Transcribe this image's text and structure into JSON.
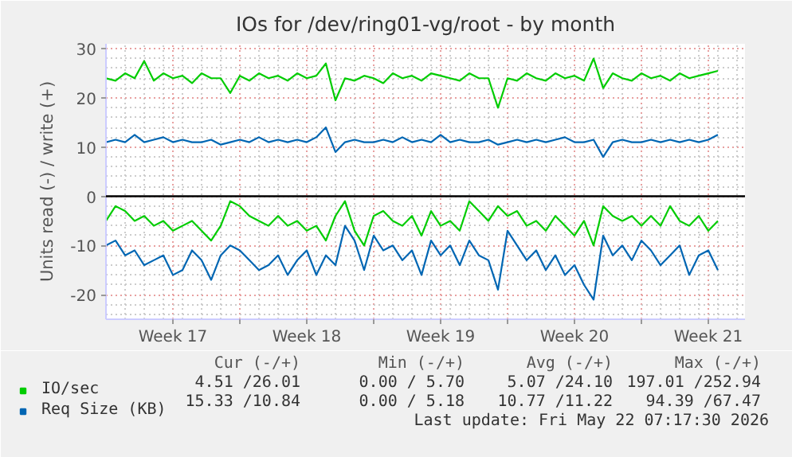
{
  "chart_data": {
    "type": "line",
    "title": "IOs for /dev/ring01-vg/root - by month",
    "ylabel": "Units read (-) / write (+)",
    "x": [
      "2026-04-20T00:00",
      "2026-04-20T12:00",
      "2026-04-21T00:00",
      "2026-04-21T12:00",
      "2026-04-22T00:00",
      "2026-04-22T12:00",
      "2026-04-23T00:00",
      "2026-04-23T12:00",
      "2026-04-24T00:00",
      "2026-04-24T12:00",
      "2026-04-25T00:00",
      "2026-04-25T12:00",
      "2026-04-26T00:00",
      "2026-04-26T12:00",
      "2026-04-27T00:00",
      "2026-04-27T12:00",
      "2026-04-28T00:00",
      "2026-04-28T12:00",
      "2026-04-29T00:00",
      "2026-04-29T12:00",
      "2026-04-30T00:00",
      "2026-04-30T12:00",
      "2026-05-01T00:00",
      "2026-05-01T12:00",
      "2026-05-02T00:00",
      "2026-05-02T12:00",
      "2026-05-03T00:00",
      "2026-05-03T12:00",
      "2026-05-04T00:00",
      "2026-05-04T12:00",
      "2026-05-05T00:00",
      "2026-05-05T12:00",
      "2026-05-06T00:00",
      "2026-05-06T12:00",
      "2026-05-07T00:00",
      "2026-05-07T12:00",
      "2026-05-08T00:00",
      "2026-05-08T12:00",
      "2026-05-09T00:00",
      "2026-05-09T12:00",
      "2026-05-10T00:00",
      "2026-05-10T12:00",
      "2026-05-11T00:00",
      "2026-05-11T12:00",
      "2026-05-12T00:00",
      "2026-05-12T12:00",
      "2026-05-13T00:00",
      "2026-05-13T12:00",
      "2026-05-14T00:00",
      "2026-05-14T12:00",
      "2026-05-15T00:00",
      "2026-05-15T12:00",
      "2026-05-16T00:00",
      "2026-05-16T12:00",
      "2026-05-17T00:00",
      "2026-05-17T12:00",
      "2026-05-18T00:00",
      "2026-05-18T12:00",
      "2026-05-19T00:00",
      "2026-05-19T12:00",
      "2026-05-20T00:00",
      "2026-05-20T12:00",
      "2026-05-21T00:00",
      "2026-05-21T12:00",
      "2026-05-22T00:00"
    ],
    "xlim": [
      "2026-04-20T00:00",
      "2026-05-23T10:00"
    ],
    "xticks": [
      {
        "value": "2026-04-23T12:00",
        "label": "Week 17"
      },
      {
        "value": "2026-04-27T00:00",
        "label": null
      },
      {
        "value": "2026-04-30T12:00",
        "label": "Week 18"
      },
      {
        "value": "2026-05-04T00:00",
        "label": null
      },
      {
        "value": "2026-05-07T12:00",
        "label": "Week 19"
      },
      {
        "value": "2026-05-11T00:00",
        "label": null
      },
      {
        "value": "2026-05-14T12:00",
        "label": "Week 20"
      },
      {
        "value": "2026-05-18T00:00",
        "label": null
      },
      {
        "value": "2026-05-21T12:00",
        "label": "Week 21"
      }
    ],
    "ylim": [
      -25,
      31
    ],
    "yticks": [
      -20,
      -10,
      0,
      10,
      20,
      30
    ],
    "grid": true,
    "legend": "bottom",
    "ref_lines": [
      {
        "axis": "y",
        "value": 0,
        "color": "#000000"
      }
    ],
    "series": [
      {
        "name": "IO/sec",
        "color": "#00cc00",
        "values": [
          24,
          23.5,
          25,
          24,
          27.5,
          23.5,
          25,
          24,
          24.5,
          23,
          25,
          24,
          24,
          21,
          24.5,
          23.5,
          25,
          24,
          24.5,
          23.5,
          25,
          24,
          24.5,
          27,
          19.5,
          24,
          23.5,
          24.5,
          24,
          23,
          25,
          24,
          24.5,
          23.5,
          25,
          24.5,
          24,
          23.5,
          25,
          24,
          24,
          18,
          24,
          23.5,
          25,
          24,
          23.5,
          25,
          24,
          24.5,
          23.5,
          28,
          22,
          25,
          24,
          23.5,
          25,
          24,
          24.5,
          23.5,
          25,
          24,
          24.5,
          25,
          25.5
        ]
      },
      {
        "name": "Req Size (KB)",
        "color": "#0066b3",
        "values": [
          11,
          11.5,
          11,
          12.5,
          11,
          11.5,
          12,
          11,
          11.5,
          11,
          11,
          11.5,
          10.5,
          11,
          11.5,
          11,
          12,
          11,
          11.5,
          11,
          11.5,
          11,
          12,
          14,
          9,
          11,
          11.5,
          11,
          11,
          11.5,
          11,
          12,
          11,
          11.5,
          11,
          12.5,
          11,
          11.5,
          11,
          11,
          11.5,
          10.5,
          11,
          11.5,
          11,
          11.5,
          11,
          11.5,
          12,
          11,
          11,
          11.5,
          8,
          11,
          11.5,
          11,
          11,
          11.5,
          11,
          11.5,
          11,
          11.5,
          11,
          11.5,
          12.5
        ]
      },
      {
        "color": "#00cc00",
        "values": [
          -5,
          -2,
          -3,
          -5,
          -4,
          -6,
          -5,
          -7,
          -6,
          -5,
          -7,
          -9,
          -6,
          -1,
          -2,
          -4,
          -5,
          -6,
          -4,
          -6,
          -5,
          -7,
          -6,
          -9,
          -4,
          -1,
          -7,
          -10,
          -4,
          -3,
          -5,
          -6,
          -4,
          -8,
          -3,
          -6,
          -5,
          -7,
          -1,
          -3,
          -5,
          -2,
          -4,
          -3,
          -6,
          -5,
          -7,
          -4,
          -6,
          -8,
          -5,
          -10,
          -2,
          -4,
          -5,
          -4,
          -6,
          -4,
          -6,
          -2,
          -5,
          -6,
          -4,
          -7,
          -5
        ]
      },
      {
        "color": "#0066b3",
        "values": [
          -10,
          -9,
          -12,
          -11,
          -14,
          -13,
          -12,
          -16,
          -15,
          -11,
          -13,
          -17,
          -12,
          -10,
          -11,
          -13,
          -15,
          -14,
          -12,
          -16,
          -13,
          -11,
          -16,
          -12,
          -14,
          -6,
          -9,
          -15,
          -8,
          -11,
          -10,
          -13,
          -11,
          -16,
          -9,
          -12,
          -10,
          -14,
          -9,
          -12,
          -13,
          -19,
          -7,
          -10,
          -13,
          -11,
          -15,
          -12,
          -16,
          -14,
          -18,
          -21,
          -8,
          -12,
          -10,
          -13,
          -9,
          -11,
          -14,
          -12,
          -10,
          -16,
          -12,
          -11,
          -15
        ]
      }
    ],
    "annotations": [
      "Cur (-/+)",
      "Min (-/+)",
      "Avg (-/+)",
      "Max (-/+)",
      "4.51 /26.01",
      "0.00 / 5.70",
      "5.07 /24.10",
      "197.01 /252.94",
      "15.33 /10.84",
      "0.00 / 5.18",
      "10.77 /11.22",
      "94.39 /67.47",
      "Last update: Fri May 22 07:17:30 2026"
    ]
  }
}
